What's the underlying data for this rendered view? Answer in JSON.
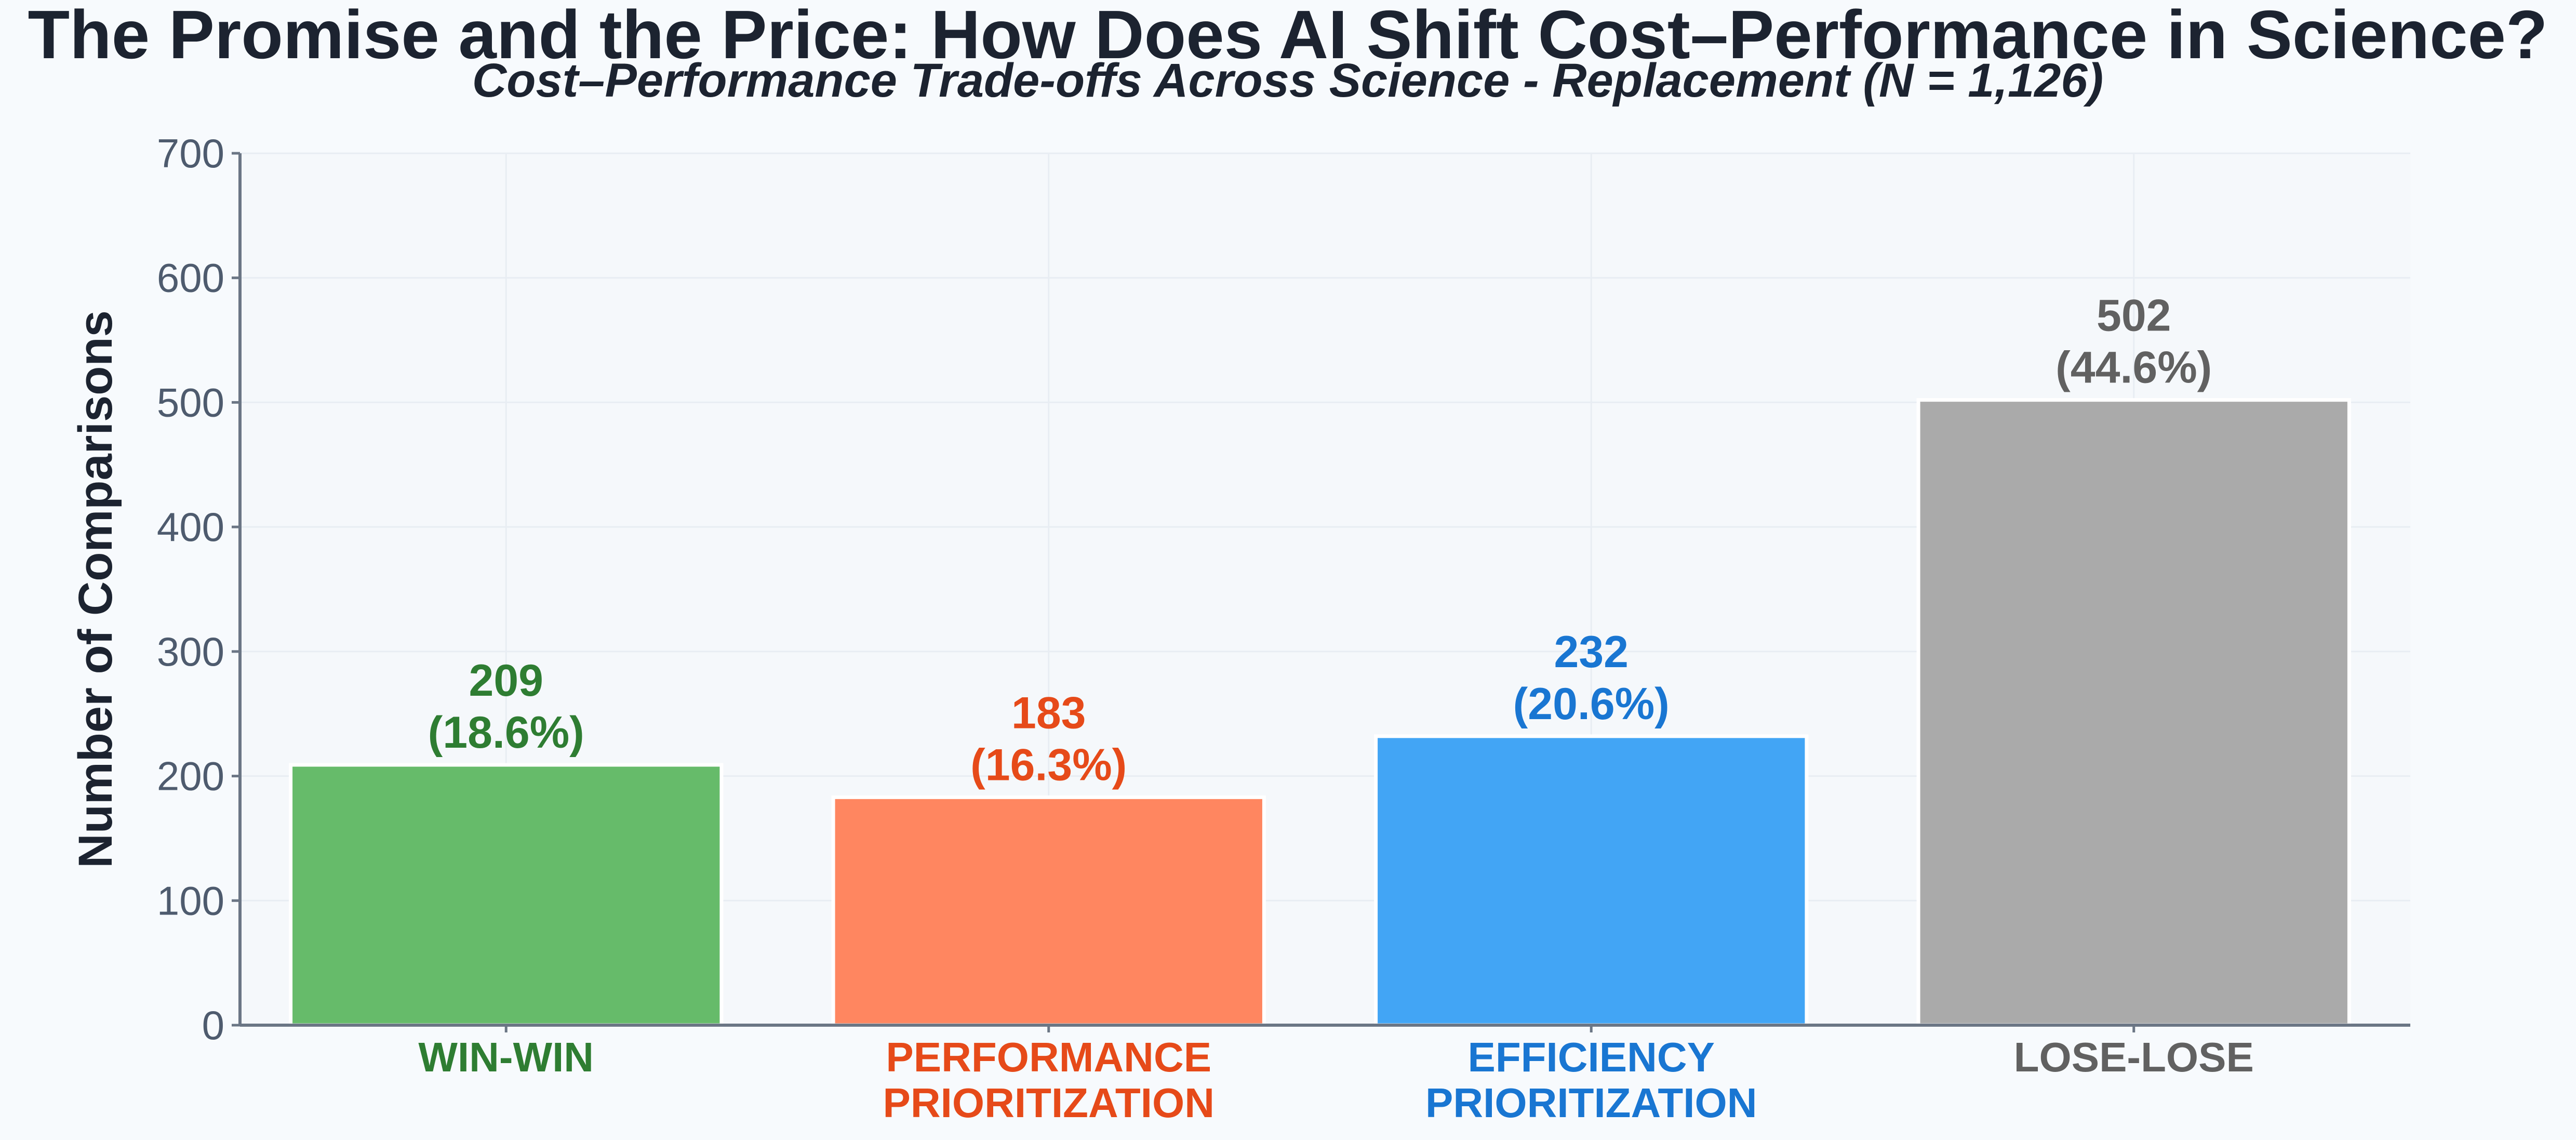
{
  "title": "The Promise and the Price: How Does AI Shift Cost–Performance in Science?",
  "subtitle": "Cost–Performance Trade-offs Across Science - Replacement (N = 1,126)",
  "chart_data": {
    "type": "bar",
    "ylabel": "Number of Comparisons",
    "xlabel": "",
    "ylim": [
      0,
      700
    ],
    "yticks": [
      0,
      100,
      200,
      300,
      400,
      500,
      600,
      700
    ],
    "grid": true,
    "legend": "none",
    "categories": [
      {
        "lines": [
          "WIN-WIN"
        ],
        "value": 209,
        "count_label": "209",
        "percent_label": "(18.6%)",
        "bar_color": "#66bb6a",
        "text_color": "#2e7d32"
      },
      {
        "lines": [
          "PERFORMANCE",
          "PRIORITIZATION"
        ],
        "value": 183,
        "count_label": "183",
        "percent_label": "(16.3%)",
        "bar_color": "#ff8660",
        "text_color": "#e64a19"
      },
      {
        "lines": [
          "EFFICIENCY",
          "PRIORITIZATION"
        ],
        "value": 232,
        "count_label": "232",
        "percent_label": "(20.6%)",
        "bar_color": "#42a5f5",
        "text_color": "#1976d2"
      },
      {
        "lines": [
          "LOSE-LOSE"
        ],
        "value": 502,
        "count_label": "502",
        "percent_label": "(44.6%)",
        "bar_color": "#aaaaaa",
        "text_color": "#616161"
      }
    ]
  }
}
